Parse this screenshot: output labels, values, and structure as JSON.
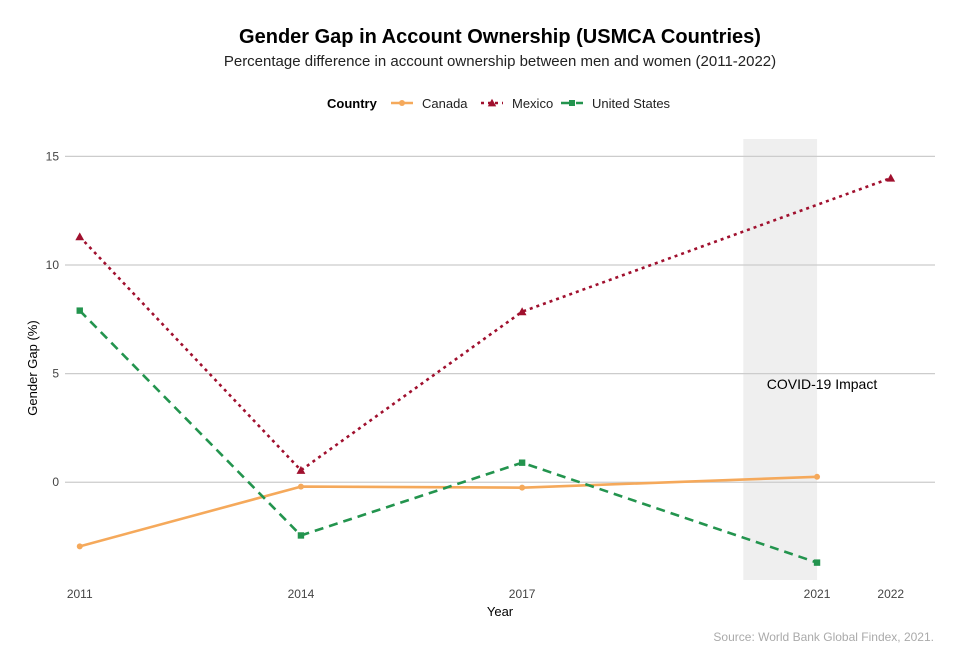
{
  "chart_data": {
    "type": "line",
    "title": "Gender Gap in Account Ownership (USMCA Countries)",
    "subtitle": "Percentage difference in account ownership between men and women (2011-2022)",
    "xlabel": "Year",
    "ylabel": "Gender Gap (%)",
    "caption": "Source: World Bank Global Findex, 2021.",
    "x_ticks": [
      2011,
      2014,
      2017,
      2021,
      2022
    ],
    "y_ticks": [
      0,
      5,
      10,
      15
    ],
    "xlim": [
      2010.8,
      2022.6
    ],
    "ylim": [
      -4.5,
      15.8
    ],
    "grid": "horizontal major",
    "legend": {
      "title": "Country",
      "position": "top"
    },
    "annotation": {
      "text": "COVID-19 Impact",
      "shaded_x_range": [
        2020,
        2021
      ]
    },
    "series": [
      {
        "name": "Canada",
        "color": "#F5A95B",
        "line_style": "solid",
        "marker": "circle",
        "x": [
          2011,
          2014,
          2017,
          2021
        ],
        "y": [
          -2.95,
          -0.2,
          -0.25,
          0.25
        ]
      },
      {
        "name": "Mexico",
        "color": "#A0102E",
        "line_style": "dotted",
        "marker": "triangle",
        "x": [
          2011,
          2014,
          2017,
          2022
        ],
        "y": [
          11.3,
          0.55,
          7.85,
          14.0
        ]
      },
      {
        "name": "United States",
        "color": "#23944E",
        "line_style": "dashed",
        "marker": "square",
        "x": [
          2011,
          2014,
          2017,
          2021
        ],
        "y": [
          7.9,
          -2.45,
          0.9,
          -3.7
        ]
      }
    ]
  }
}
